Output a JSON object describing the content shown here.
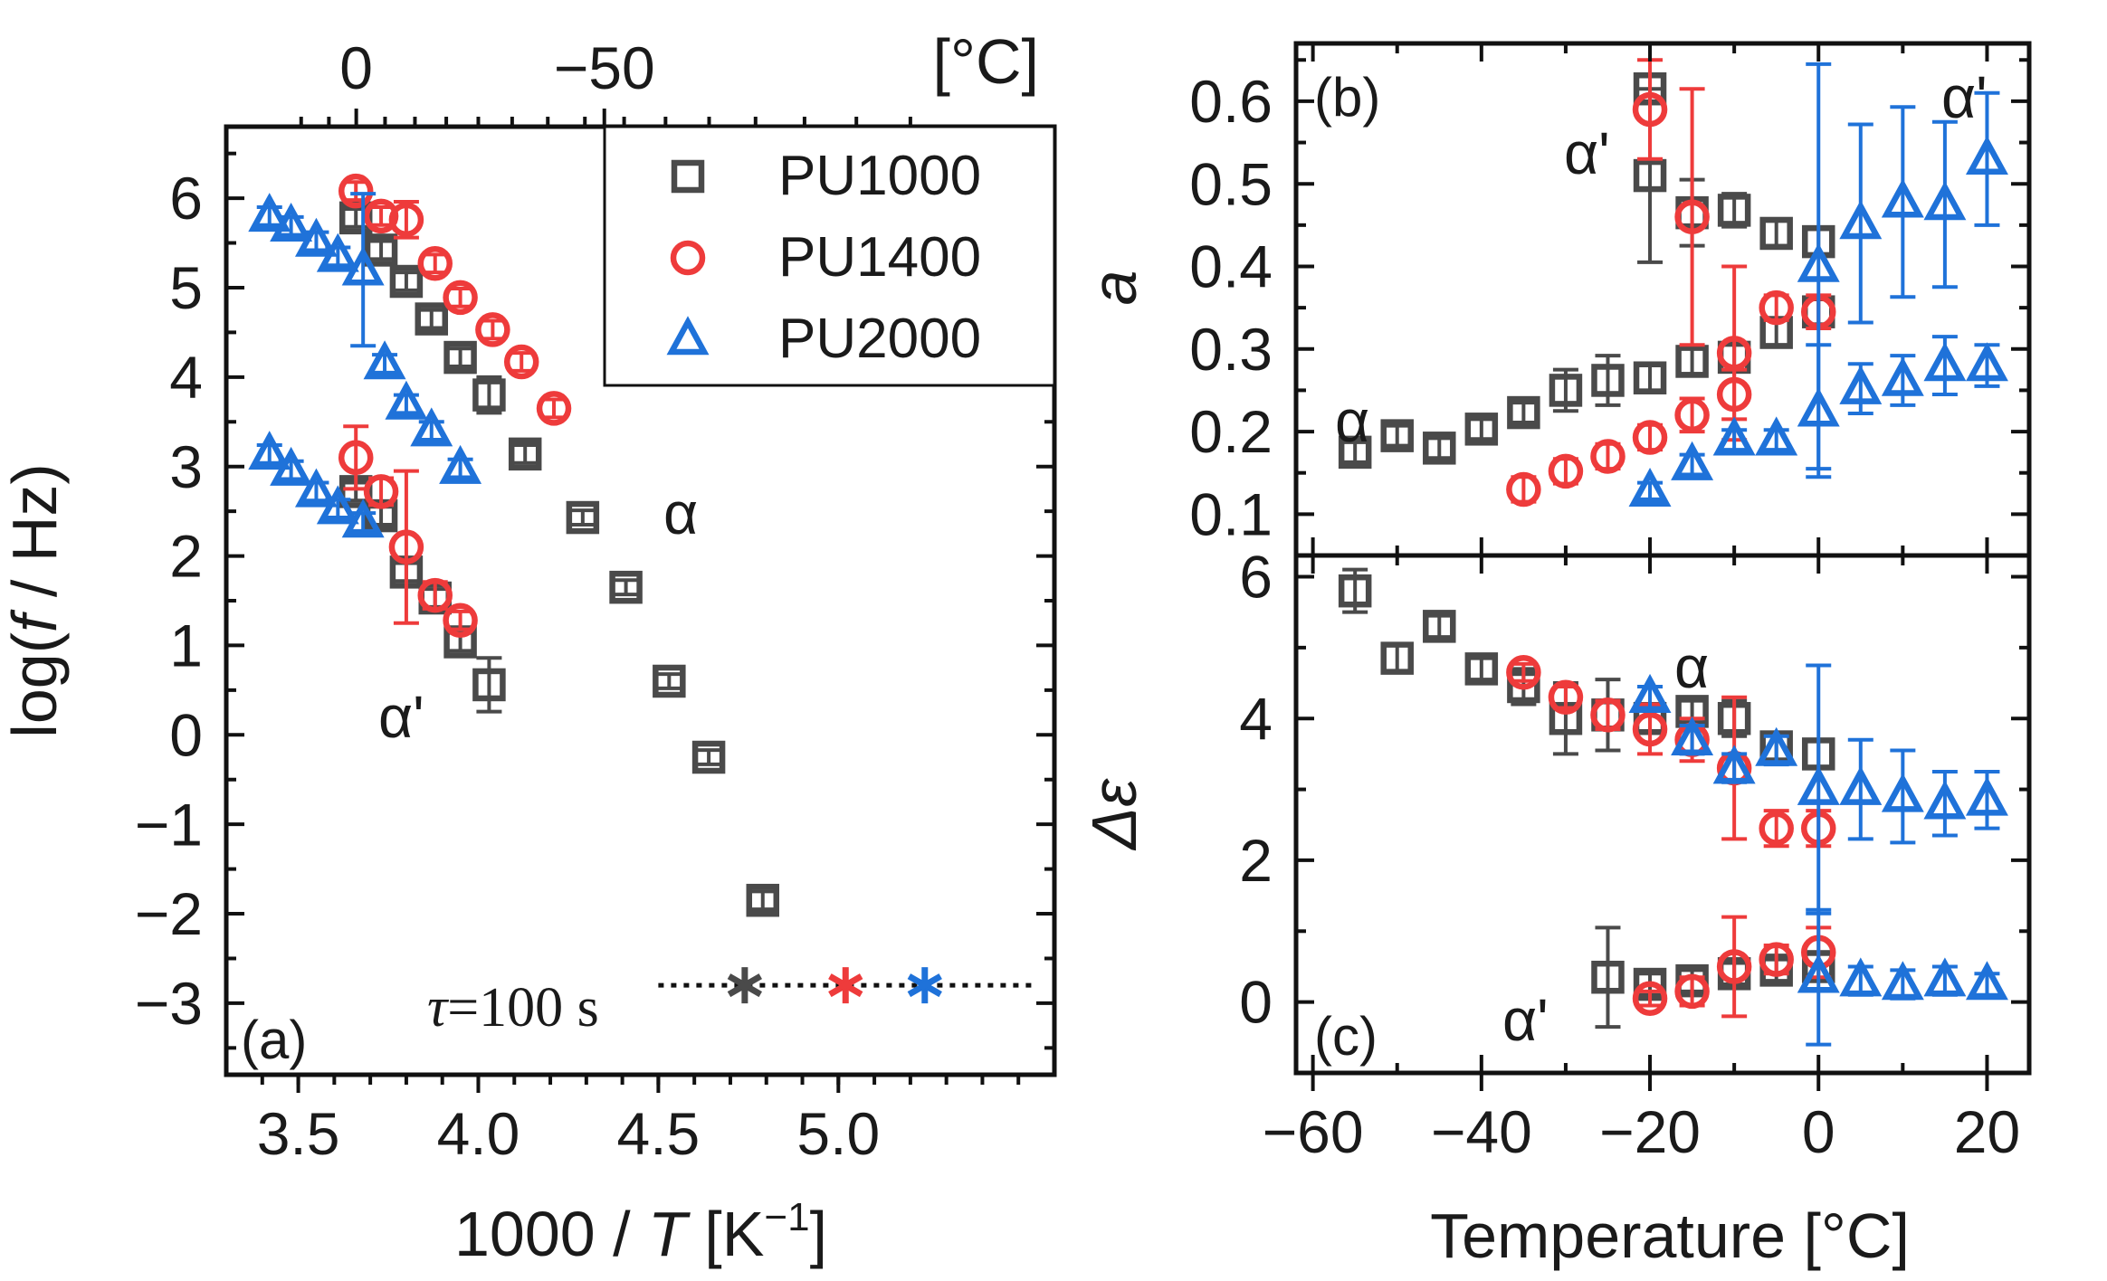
{
  "colors": {
    "PU1000": "#4a4a4a",
    "PU1400": "#ee3b3b",
    "PU2000": "#1f72d9"
  },
  "chart_data": [
    {
      "panel": "(a)",
      "type": "scatter",
      "xlabel_prefix": "1000 / ",
      "xlabel_var": "T",
      "xlabel_unit": " [K",
      "xlabel_exp": "−1",
      "xlabel_close": "]",
      "ylabel_prefix": "log(",
      "ylabel_var": "f",
      "ylabel_suffix": " / Hz)",
      "top_axis_unit": "[°C]",
      "xlim": [
        3.3,
        5.6
      ],
      "ylim": [
        -3.8,
        6.8
      ],
      "xticks": [
        3.5,
        4.0,
        4.5,
        5.0
      ],
      "xtick_labels": [
        "3.5",
        "4.0",
        "4.5",
        "5.0"
      ],
      "yticks": [
        -3,
        -2,
        -1,
        0,
        1,
        2,
        3,
        4,
        5,
        6
      ],
      "ytick_labels": [
        "−3",
        "−2",
        "−1",
        "0",
        "1",
        "2",
        "3",
        "4",
        "5",
        "6"
      ],
      "top_ticks": [
        {
          "x": 3.661,
          "label": "0"
        },
        {
          "x": 4.35,
          "label": "−50"
        }
      ],
      "legend": [
        {
          "label": "PU1000",
          "marker": "square",
          "series": "PU1000"
        },
        {
          "label": "PU1400",
          "marker": "circle",
          "series": "PU1400"
        },
        {
          "label": "PU2000",
          "marker": "triangle",
          "series": "PU2000"
        }
      ],
      "annotations": [
        {
          "text": "α",
          "x": 4.45,
          "y": 2.5
        },
        {
          "text": "α'",
          "x": 3.75,
          "y": 0.2
        }
      ],
      "tau_line": {
        "label_var": "τ",
        "label_rest": "=100 s",
        "y": -2.8,
        "x_start": 4.5,
        "x_end": 5.55,
        "points": [
          {
            "series": "PU1000",
            "x": 4.74
          },
          {
            "series": "PU1400",
            "x": 5.02
          },
          {
            "series": "PU2000",
            "x": 5.24
          }
        ]
      },
      "series": [
        {
          "name": "PU1000",
          "process": "alpha",
          "points": [
            [
              3.66,
              5.78,
              0.1
            ],
            [
              3.73,
              5.42,
              0.1
            ],
            [
              3.8,
              5.07,
              0.1
            ],
            [
              3.87,
              4.65,
              0.1
            ],
            [
              3.95,
              4.22,
              0.1
            ],
            [
              4.03,
              3.8,
              0.2
            ],
            [
              4.13,
              3.14,
              0.1
            ],
            [
              4.29,
              2.43,
              0.08
            ],
            [
              4.41,
              1.65,
              0.08
            ],
            [
              4.53,
              0.6,
              0.08
            ],
            [
              4.64,
              -0.25,
              0.08
            ],
            [
              4.79,
              -1.85,
              0.1
            ]
          ]
        },
        {
          "name": "PU1000",
          "process": "alpha_prime",
          "points": [
            [
              3.66,
              2.72,
              0.1
            ],
            [
              3.73,
              2.45,
              0.1
            ],
            [
              3.8,
              1.82,
              0.1
            ],
            [
              3.88,
              1.53,
              0.1
            ],
            [
              3.95,
              1.04,
              0.1
            ],
            [
              4.03,
              0.56,
              0.3
            ]
          ]
        },
        {
          "name": "PU1400",
          "process": "alpha",
          "points": [
            [
              3.66,
              6.08,
              0.1
            ],
            [
              3.73,
              5.8,
              0.1
            ],
            [
              3.8,
              5.76,
              0.2
            ],
            [
              3.88,
              5.27,
              0.1
            ],
            [
              3.95,
              4.89,
              0.1
            ],
            [
              4.04,
              4.53,
              0.1
            ],
            [
              4.12,
              4.17,
              0.1
            ],
            [
              4.21,
              3.65,
              0.1
            ]
          ]
        },
        {
          "name": "PU1400",
          "process": "alpha_prime",
          "points": [
            [
              3.66,
              3.1,
              0.35
            ],
            [
              3.73,
              2.72,
              0.15
            ],
            [
              3.8,
              2.1,
              0.85
            ],
            [
              3.88,
              1.56,
              0.15
            ],
            [
              3.95,
              1.28,
              0.1
            ]
          ]
        },
        {
          "name": "PU2000",
          "process": "alpha",
          "points": [
            [
              3.42,
              5.8,
              0.1
            ],
            [
              3.48,
              5.69,
              0.1
            ],
            [
              3.55,
              5.52,
              0.1
            ],
            [
              3.61,
              5.35,
              0.1
            ],
            [
              3.68,
              5.2,
              0.85
            ],
            [
              3.74,
              4.15,
              0.1
            ],
            [
              3.8,
              3.7,
              0.1
            ],
            [
              3.87,
              3.4,
              0.1
            ],
            [
              3.95,
              2.98,
              0.1
            ]
          ]
        },
        {
          "name": "PU2000",
          "process": "alpha_prime",
          "points": [
            [
              3.42,
              3.14,
              0.1
            ],
            [
              3.48,
              2.96,
              0.1
            ],
            [
              3.55,
              2.72,
              0.1
            ],
            [
              3.61,
              2.53,
              0.1
            ],
            [
              3.68,
              2.38,
              0.1
            ]
          ]
        }
      ]
    },
    {
      "panel": "(b)",
      "type": "scatter",
      "ylabel": "a",
      "xlim": [
        -62,
        25
      ],
      "ylim": [
        0.05,
        0.67
      ],
      "yticks": [
        0.1,
        0.2,
        0.3,
        0.4,
        0.5,
        0.6
      ],
      "ytick_labels": [
        "0.1",
        "0.2",
        "0.3",
        "0.4",
        "0.5",
        "0.6"
      ],
      "annotations": [
        {
          "text": "α'",
          "x": -25,
          "y": 0.5
        },
        {
          "text": "α",
          "x": -55,
          "y": 0.19
        },
        {
          "text": "α'",
          "x": 15,
          "y": 0.6
        }
      ],
      "series": [
        {
          "name": "PU1000",
          "process": "alpha",
          "points": [
            [
              -55,
              0.175,
              0.012
            ],
            [
              -50,
              0.195,
              0.012
            ],
            [
              -45,
              0.18,
              0.012
            ],
            [
              -40,
              0.203,
              0.012
            ],
            [
              -35,
              0.223,
              0.012
            ],
            [
              -30,
              0.25,
              0.025
            ],
            [
              -25,
              0.262,
              0.03
            ],
            [
              -20,
              0.265,
              0.015
            ],
            [
              -15,
              0.285,
              0.015
            ],
            [
              -10,
              0.29,
              0.015
            ],
            [
              -5,
              0.32,
              0.015
            ],
            [
              0,
              0.345,
              0.015
            ]
          ]
        },
        {
          "name": "PU1000",
          "process": "alpha_prime",
          "points": [
            [
              -20,
              0.615,
              0.015
            ],
            [
              -20,
              0.51,
              0.105
            ],
            [
              -15,
              0.465,
              0.04
            ],
            [
              -10,
              0.468,
              0.02
            ],
            [
              -5,
              0.44,
              0.015
            ],
            [
              0,
              0.43,
              0.015
            ]
          ]
        },
        {
          "name": "PU1400",
          "process": "alpha",
          "points": [
            [
              -35,
              0.13,
              0.015
            ],
            [
              -30,
              0.152,
              0.015
            ],
            [
              -25,
              0.17,
              0.015
            ],
            [
              -20,
              0.193,
              0.015
            ],
            [
              -15,
              0.22,
              0.02
            ],
            [
              -10,
              0.245,
              0.03
            ]
          ]
        },
        {
          "name": "PU1400",
          "process": "alpha_prime",
          "points": [
            [
              -20,
              0.59,
              0.06
            ],
            [
              -15,
              0.46,
              0.155
            ],
            [
              -10,
              0.295,
              0.105
            ],
            [
              -5,
              0.35,
              0.015
            ],
            [
              0,
              0.345,
              0.02
            ]
          ]
        },
        {
          "name": "PU2000",
          "process": "alpha",
          "points": [
            [
              -20,
              0.128,
              0.01
            ],
            [
              -15,
              0.16,
              0.012
            ],
            [
              -10,
              0.19,
              0.012
            ],
            [
              -5,
              0.19,
              0.012
            ],
            [
              0,
              0.225,
              0.08
            ],
            [
              5,
              0.252,
              0.03
            ],
            [
              10,
              0.262,
              0.03
            ],
            [
              15,
              0.28,
              0.035
            ],
            [
              20,
              0.28,
              0.025
            ]
          ]
        },
        {
          "name": "PU2000",
          "process": "alpha_prime",
          "points": [
            [
              0,
              0.4,
              0.245
            ],
            [
              5,
              0.452,
              0.12
            ],
            [
              10,
              0.478,
              0.115
            ],
            [
              15,
              0.475,
              0.1
            ],
            [
              20,
              0.53,
              0.08
            ]
          ]
        }
      ]
    },
    {
      "panel": "(c)",
      "type": "scatter",
      "ylabel": "Δε",
      "xlabel": "Temperature [°C]",
      "xlim": [
        -62,
        25
      ],
      "ylim": [
        -1,
        6.3
      ],
      "xticks": [
        -60,
        -40,
        -20,
        0,
        20
      ],
      "xtick_labels": [
        "−60",
        "−40",
        "−20",
        "0",
        "20"
      ],
      "yticks": [
        0,
        2,
        4,
        6
      ],
      "ytick_labels": [
        "0",
        "2",
        "4",
        "6"
      ],
      "annotations": [
        {
          "text": "α",
          "x": -19,
          "y": 4.8
        },
        {
          "text": "α'",
          "x": -33,
          "y": -0.45
        }
      ],
      "series": [
        {
          "name": "PU1000",
          "process": "alpha",
          "points": [
            [
              -55,
              5.8,
              0.3
            ],
            [
              -50,
              4.85,
              0.2
            ],
            [
              -45,
              5.3,
              0.15
            ],
            [
              -40,
              4.7,
              0.15
            ],
            [
              -35,
              4.45,
              0.25
            ],
            [
              -30,
              4.0,
              0.5
            ],
            [
              -25,
              4.05,
              0.5
            ],
            [
              -20,
              4.0,
              0.2
            ],
            [
              -15,
              4.1,
              0.15
            ],
            [
              -10,
              4.0,
              0.25
            ],
            [
              -5,
              3.6,
              0.2
            ],
            [
              0,
              3.5,
              0.2
            ]
          ]
        },
        {
          "name": "PU1000",
          "process": "alpha_prime",
          "points": [
            [
              -25,
              0.35,
              0.7
            ],
            [
              -20,
              0.25,
              0.15
            ],
            [
              -15,
              0.3,
              0.15
            ],
            [
              -10,
              0.4,
              0.15
            ],
            [
              -5,
              0.45,
              0.15
            ],
            [
              0,
              0.5,
              0.2
            ]
          ]
        },
        {
          "name": "PU1400",
          "process": "alpha",
          "points": [
            [
              -35,
              4.65,
              0.12
            ],
            [
              -30,
              4.3,
              0.15
            ],
            [
              -25,
              4.05,
              0.2
            ],
            [
              -20,
              3.85,
              0.35
            ],
            [
              -15,
              3.7,
              0.3
            ],
            [
              -10,
              3.3,
              1.0
            ],
            [
              -5,
              2.45,
              0.25
            ],
            [
              0,
              2.45,
              0.25
            ]
          ]
        },
        {
          "name": "PU1400",
          "process": "alpha_prime",
          "points": [
            [
              -20,
              0.05,
              0.1
            ],
            [
              -15,
              0.15,
              0.2
            ],
            [
              -10,
              0.5,
              0.7
            ],
            [
              -5,
              0.6,
              0.2
            ],
            [
              0,
              0.7,
              0.35
            ]
          ]
        },
        {
          "name": "PU2000",
          "process": "alpha",
          "points": [
            [
              -20,
              4.3,
              0.15
            ],
            [
              -15,
              3.7,
              0.2
            ],
            [
              -10,
              3.3,
              0.2
            ],
            [
              -5,
              3.55,
              0.2
            ],
            [
              0,
              3.0,
              1.75
            ],
            [
              5,
              3.0,
              0.7
            ],
            [
              10,
              2.9,
              0.65
            ],
            [
              15,
              2.8,
              0.45
            ],
            [
              20,
              2.85,
              0.4
            ]
          ]
        },
        {
          "name": "PU2000",
          "process": "alpha_prime",
          "points": [
            [
              0,
              0.35,
              0.95
            ],
            [
              5,
              0.3,
              0.2
            ],
            [
              10,
              0.25,
              0.2
            ],
            [
              15,
              0.3,
              0.2
            ],
            [
              20,
              0.25,
              0.15
            ]
          ]
        }
      ]
    }
  ]
}
